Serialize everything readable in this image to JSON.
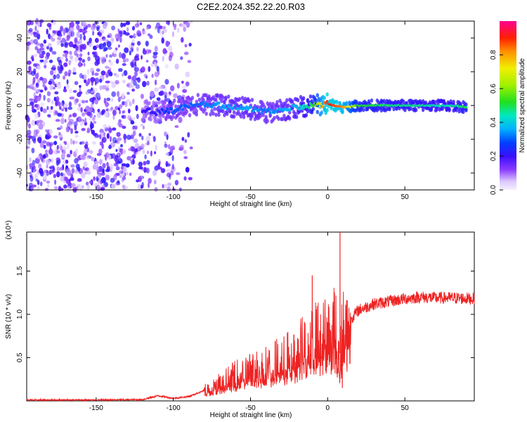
{
  "title": "C2E2.2024.352.22.20.R03",
  "chart_data": [
    {
      "type": "heatmap",
      "xlabel": "Height of straight line (km)",
      "ylabel": "Frequency (Hz)",
      "xlim": [
        -195,
        95
      ],
      "ylim": [
        -50,
        50
      ],
      "xticks": [
        -150,
        -100,
        -50,
        0,
        50
      ],
      "yticks": [
        -40,
        -20,
        0,
        20,
        40
      ],
      "colorbar": {
        "label": "Normalized spectral amplitude",
        "range": [
          0,
          1
        ],
        "ticks": [
          "0.0",
          "0.2",
          "0.4",
          "0.6",
          "0.8"
        ]
      },
      "ridge": {
        "x": [
          -120,
          -110,
          -100,
          -90,
          -80,
          -70,
          -60,
          -50,
          -40,
          -30,
          -20,
          -10,
          0,
          10,
          20,
          30,
          40,
          50,
          60,
          70,
          80,
          90
        ],
        "y": [
          -3,
          -4,
          -3,
          0,
          1,
          0,
          -1,
          -2,
          -4,
          -3,
          -1,
          0,
          1,
          -1,
          0,
          0,
          0,
          0,
          0,
          0,
          0,
          -1
        ],
        "amplitude": [
          0.2,
          0.22,
          0.3,
          0.3,
          0.32,
          0.35,
          0.35,
          0.35,
          0.32,
          0.35,
          0.38,
          0.5,
          0.92,
          0.82,
          0.52,
          0.5,
          0.48,
          0.47,
          0.47,
          0.45,
          0.45,
          0.5
        ]
      },
      "noise_region_x": [
        -195,
        -88
      ]
    },
    {
      "type": "line",
      "xlabel": "Height of straight line (km)",
      "ylabel": "SNR (10 * v/v)",
      "y_multiplier": "(x10⁴)",
      "xlim": [
        -195,
        95
      ],
      "ylim": [
        0,
        1.95
      ],
      "xticks": [
        -150,
        -100,
        -50,
        0,
        50
      ],
      "yticks": [
        0.5,
        1.0,
        1.5
      ],
      "ytick_labels": [
        "0.5",
        "1.0",
        "1.5"
      ],
      "color": "#ee2222",
      "series": [
        {
          "x": [
            -195,
            -150,
            -120,
            -110,
            -100,
            -90,
            -80,
            -70,
            -60,
            -50,
            -40,
            -30,
            -20,
            -10,
            0,
            5,
            8,
            10,
            15,
            20,
            30,
            40,
            50,
            60,
            70,
            80,
            95
          ],
          "y": [
            0.01,
            0.01,
            0.015,
            0.06,
            0.03,
            0.05,
            0.12,
            0.22,
            0.3,
            0.36,
            0.42,
            0.48,
            0.58,
            0.75,
            0.8,
            0.9,
            0.55,
            0.92,
            0.95,
            1.05,
            1.12,
            1.15,
            1.18,
            1.2,
            1.19,
            1.19,
            1.18
          ]
        }
      ],
      "spikes": [
        {
          "x": -10,
          "y": 1.45
        },
        {
          "x": 8,
          "y": 1.95
        },
        {
          "x": 9.5,
          "y": 0.15
        }
      ]
    }
  ]
}
